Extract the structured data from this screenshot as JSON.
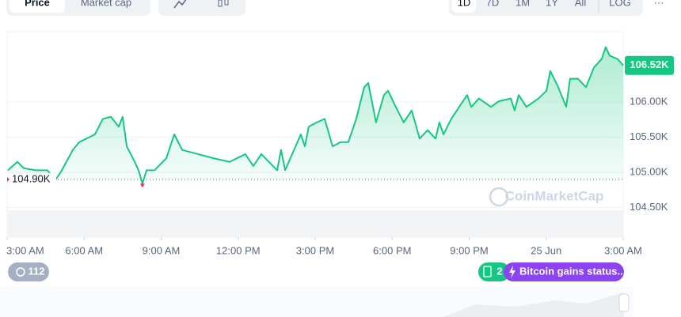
{
  "ui": {
    "tabs": [
      "Price",
      "Market cap"
    ],
    "ranges": [
      "1D",
      "7D",
      "1M",
      "1Y",
      "All",
      "LOG"
    ],
    "more": "···",
    "price_badge": "106.52K",
    "watermark": "CoinMarketCap",
    "history_count": "112",
    "news_count": "2",
    "news_title": "Bitcoin gains status..."
  },
  "chart_data": {
    "type": "line",
    "color": "#16c784",
    "x": [
      0.03,
      0.4,
      0.65,
      1.11,
      1.57,
      1.88,
      2.13,
      2.56,
      2.81,
      3.42,
      3.73,
      4.04,
      4.35,
      4.5,
      4.66,
      4.97,
      5.12,
      5.27,
      5.43,
      5.74,
      6.2,
      6.51,
      6.82,
      7.43,
      8.05,
      8.67,
      9.28,
      9.59,
      9.9,
      10.52,
      10.67,
      10.83,
      11.44,
      11.6,
      11.75,
      12.06,
      12.37,
      12.68,
      12.99,
      13.29,
      13.6,
      13.91,
      14.07,
      14.37,
      14.68,
      14.84,
      15.14,
      15.45,
      15.76,
      16.07,
      16.38,
      16.69,
      16.84,
      17.0,
      17.3,
      17.61,
      17.92,
      18.08,
      18.38,
      18.85,
      19.15,
      19.62,
      19.77,
      19.93,
      20.23,
      20.7,
      21.01,
      21.16,
      21.47,
      21.78,
      21.93,
      22.24,
      22.55,
      22.86,
      23.16,
      23.32,
      23.47,
      23.78,
      24.0
    ],
    "series": [
      {
        "name": "Price",
        "color": "#16c784",
        "values": [
          105.03,
          105.15,
          105.06,
          105.03,
          105.03,
          104.89,
          105.03,
          105.32,
          105.43,
          105.54,
          105.76,
          105.79,
          105.65,
          105.79,
          105.37,
          105.15,
          105.03,
          104.84,
          105.03,
          105.03,
          105.2,
          105.54,
          105.32,
          105.26,
          105.2,
          105.15,
          105.26,
          105.09,
          105.26,
          105.03,
          105.32,
          105.03,
          105.54,
          105.37,
          105.65,
          105.71,
          105.76,
          105.37,
          105.43,
          105.43,
          105.76,
          106.21,
          106.27,
          105.71,
          106.1,
          106.16,
          105.93,
          105.71,
          105.88,
          105.48,
          105.6,
          105.48,
          105.71,
          105.54,
          105.76,
          105.93,
          106.1,
          105.93,
          106.05,
          105.93,
          106.01,
          106.05,
          105.88,
          106.1,
          105.93,
          106.05,
          106.16,
          106.44,
          106.21,
          105.93,
          106.33,
          106.33,
          106.21,
          106.49,
          106.61,
          106.78,
          106.66,
          106.61,
          106.52
        ]
      }
    ],
    "baseline": {
      "value": 104.9,
      "label": "104.90K"
    },
    "xlim": [
      0,
      24
    ],
    "xticks": [
      {
        "value": 0,
        "label": "3:00 AM"
      },
      {
        "value": 3,
        "label": "6:00 AM"
      },
      {
        "value": 6,
        "label": "9:00 AM"
      },
      {
        "value": 9,
        "label": "12:00 PM"
      },
      {
        "value": 12,
        "label": "3:00 PM"
      },
      {
        "value": 15,
        "label": "6:00 PM"
      },
      {
        "value": 18,
        "label": "9:00 PM"
      },
      {
        "value": 21,
        "label": "25 Jun"
      },
      {
        "value": 24,
        "label": "3:00 AM"
      }
    ],
    "ylim": [
      104.08,
      107.0
    ],
    "yticks": [
      {
        "value": 104.5,
        "label": "104.50K"
      },
      {
        "value": 105,
        "label": "105.00K"
      },
      {
        "value": 105.5,
        "label": "105.50K"
      },
      {
        "value": 106,
        "label": "106.00K"
      }
    ],
    "grid": true
  }
}
